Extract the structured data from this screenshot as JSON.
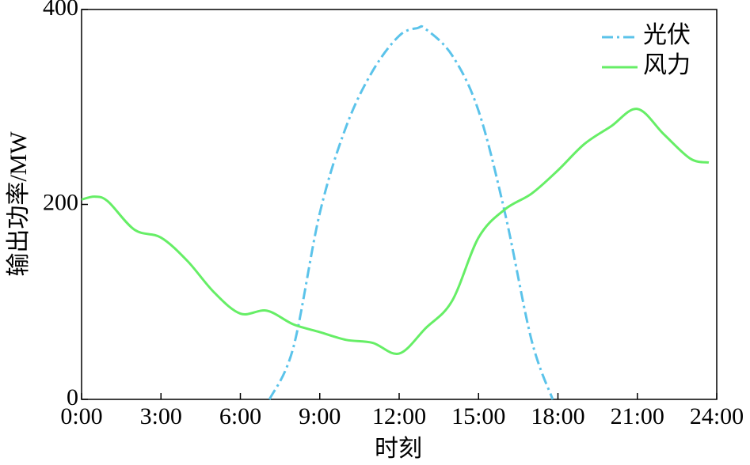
{
  "chart_data": {
    "type": "line",
    "xlabel": "时刻",
    "ylabel": "输出功率/MW",
    "xlim": [
      0,
      24
    ],
    "ylim": [
      0,
      400
    ],
    "xticks": [
      {
        "value": 0,
        "label": "0:00"
      },
      {
        "value": 3,
        "label": "3:00"
      },
      {
        "value": 6,
        "label": "6:00"
      },
      {
        "value": 9,
        "label": "9:00"
      },
      {
        "value": 12,
        "label": "12:00"
      },
      {
        "value": 15,
        "label": "15:00"
      },
      {
        "value": 18,
        "label": "18:00"
      },
      {
        "value": 21,
        "label": "21:00"
      },
      {
        "value": 24,
        "label": "24:00"
      }
    ],
    "yticks": [
      0,
      200,
      400
    ],
    "legend": "upper right",
    "series": [
      {
        "name": "光伏",
        "color": "#5bc3ea",
        "dash": "dashdot",
        "x": [
          7.1,
          8,
          9,
          10,
          11,
          12,
          12.7,
          13,
          14,
          15,
          16,
          17,
          17.8
        ],
        "values": [
          0,
          53,
          191,
          280,
          337,
          373,
          381,
          380,
          353,
          296,
          191,
          61,
          0
        ]
      },
      {
        "name": "风力",
        "color": "#66ee66",
        "dash": "solid",
        "x": [
          0,
          0.5,
          1,
          2,
          3,
          4,
          5,
          6,
          7,
          8,
          9,
          10,
          11,
          12,
          13,
          14,
          15,
          16,
          17,
          18,
          19,
          20,
          21,
          22,
          23,
          23.7
        ],
        "values": [
          205,
          208,
          203,
          174,
          166,
          142,
          110,
          88,
          91,
          77,
          69,
          61,
          58,
          47,
          73,
          101,
          166,
          195,
          211,
          235,
          262,
          280,
          298,
          272,
          247,
          243
        ]
      }
    ]
  }
}
